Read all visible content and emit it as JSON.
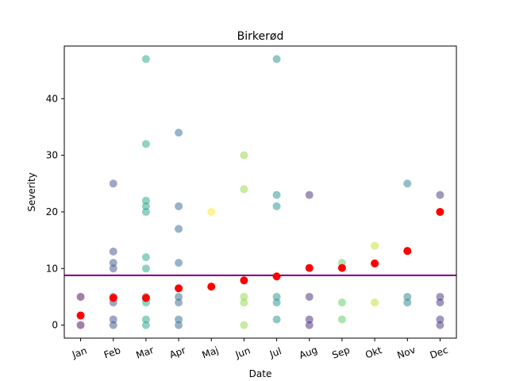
{
  "chart_data": {
    "type": "scatter",
    "title": "Birkerød",
    "xlabel": "Date",
    "ylabel": "Severity",
    "ylim": [
      -2.3,
      49.3
    ],
    "yticks": [
      0,
      10,
      20,
      30,
      40
    ],
    "categories": [
      "Jan",
      "Feb",
      "Mar",
      "Apr",
      "Maj",
      "Jun",
      "Jul",
      "Aug",
      "Sep",
      "Okt",
      "Nov",
      "Dec"
    ],
    "grid": false,
    "series": [
      {
        "marker": "individual",
        "points": [
          {
            "x": "Jan",
            "y": 5,
            "color": "#440154"
          },
          {
            "x": "Jan",
            "y": 0,
            "color": "#440154"
          },
          {
            "x": "Feb",
            "y": 25,
            "color": "#3b528b"
          },
          {
            "x": "Feb",
            "y": 13,
            "color": "#3b528b"
          },
          {
            "x": "Feb",
            "y": 11,
            "color": "#3b528b"
          },
          {
            "x": "Feb",
            "y": 10,
            "color": "#3b528b"
          },
          {
            "x": "Feb",
            "y": 5,
            "color": "#3b528b"
          },
          {
            "x": "Feb",
            "y": 4,
            "color": "#3b528b"
          },
          {
            "x": "Feb",
            "y": 1,
            "color": "#3b528b"
          },
          {
            "x": "Feb",
            "y": 0,
            "color": "#3b528b"
          },
          {
            "x": "Mar",
            "y": 47,
            "color": "#21a685"
          },
          {
            "x": "Mar",
            "y": 32,
            "color": "#21a685"
          },
          {
            "x": "Mar",
            "y": 22,
            "color": "#21a685"
          },
          {
            "x": "Mar",
            "y": 21,
            "color": "#21a685"
          },
          {
            "x": "Mar",
            "y": 20,
            "color": "#21a685"
          },
          {
            "x": "Mar",
            "y": 12,
            "color": "#21a685"
          },
          {
            "x": "Mar",
            "y": 10,
            "color": "#21a685"
          },
          {
            "x": "Mar",
            "y": 5,
            "color": "#21a685"
          },
          {
            "x": "Mar",
            "y": 4,
            "color": "#21a685"
          },
          {
            "x": "Mar",
            "y": 1,
            "color": "#21a685"
          },
          {
            "x": "Mar",
            "y": 0,
            "color": "#21a685"
          },
          {
            "x": "Apr",
            "y": 34,
            "color": "#31688e"
          },
          {
            "x": "Apr",
            "y": 21,
            "color": "#31688e"
          },
          {
            "x": "Apr",
            "y": 17,
            "color": "#31688e"
          },
          {
            "x": "Apr",
            "y": 11,
            "color": "#31688e"
          },
          {
            "x": "Apr",
            "y": 5,
            "color": "#31688e"
          },
          {
            "x": "Apr",
            "y": 4,
            "color": "#31688e"
          },
          {
            "x": "Apr",
            "y": 1,
            "color": "#31688e"
          },
          {
            "x": "Apr",
            "y": 0,
            "color": "#31688e"
          },
          {
            "x": "Maj",
            "y": 20,
            "color": "#fde725"
          },
          {
            "x": "Jun",
            "y": 30,
            "color": "#90d743"
          },
          {
            "x": "Jun",
            "y": 24,
            "color": "#90d743"
          },
          {
            "x": "Jun",
            "y": 5,
            "color": "#90d743"
          },
          {
            "x": "Jun",
            "y": 4,
            "color": "#90d743"
          },
          {
            "x": "Jun",
            "y": 0,
            "color": "#90d743"
          },
          {
            "x": "Jul",
            "y": 47,
            "color": "#21918c"
          },
          {
            "x": "Jul",
            "y": 23,
            "color": "#21918c"
          },
          {
            "x": "Jul",
            "y": 21,
            "color": "#21918c"
          },
          {
            "x": "Jul",
            "y": 5,
            "color": "#21918c"
          },
          {
            "x": "Jul",
            "y": 4,
            "color": "#21918c"
          },
          {
            "x": "Jul",
            "y": 1,
            "color": "#21918c"
          },
          {
            "x": "Aug",
            "y": 23,
            "color": "#482878"
          },
          {
            "x": "Aug",
            "y": 5,
            "color": "#482878"
          },
          {
            "x": "Aug",
            "y": 1,
            "color": "#482878"
          },
          {
            "x": "Aug",
            "y": 0,
            "color": "#482878"
          },
          {
            "x": "Sep",
            "y": 11,
            "color": "#5ec962"
          },
          {
            "x": "Sep",
            "y": 4,
            "color": "#5ec962"
          },
          {
            "x": "Sep",
            "y": 1,
            "color": "#5ec962"
          },
          {
            "x": "Okt",
            "y": 14,
            "color": "#c2df23"
          },
          {
            "x": "Okt",
            "y": 4,
            "color": "#c2df23"
          },
          {
            "x": "Nov",
            "y": 25,
            "color": "#26828e"
          },
          {
            "x": "Nov",
            "y": 5,
            "color": "#26828e"
          },
          {
            "x": "Nov",
            "y": 4,
            "color": "#26828e"
          },
          {
            "x": "Dec",
            "y": 23,
            "color": "#46327e"
          },
          {
            "x": "Dec",
            "y": 5,
            "color": "#46327e"
          },
          {
            "x": "Dec",
            "y": 4,
            "color": "#46327e"
          },
          {
            "x": "Dec",
            "y": 1,
            "color": "#46327e"
          },
          {
            "x": "Dec",
            "y": 0,
            "color": "#46327e"
          }
        ]
      },
      {
        "marker": "monthly-mean",
        "color": "#ff0000",
        "points": [
          {
            "x": "Jan",
            "y": 1.7
          },
          {
            "x": "Feb",
            "y": 4.8
          },
          {
            "x": "Mar",
            "y": 4.8
          },
          {
            "x": "Apr",
            "y": 6.5
          },
          {
            "x": "Maj",
            "y": 6.8
          },
          {
            "x": "Jun",
            "y": 7.9
          },
          {
            "x": "Jul",
            "y": 8.6
          },
          {
            "x": "Aug",
            "y": 10.1
          },
          {
            "x": "Sep",
            "y": 10.1
          },
          {
            "x": "Okt",
            "y": 10.9
          },
          {
            "x": "Nov",
            "y": 13.1
          },
          {
            "x": "Dec",
            "y": 20
          }
        ]
      }
    ],
    "hline": {
      "y": 8.8,
      "color": "#800080"
    }
  }
}
